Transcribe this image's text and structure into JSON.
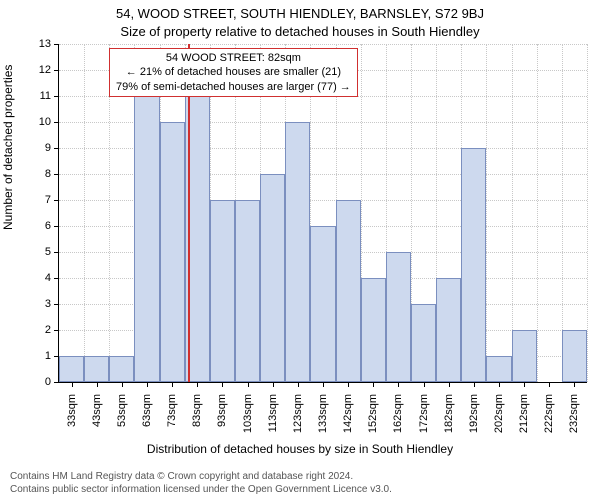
{
  "header": {
    "address": "54, WOOD STREET, SOUTH HIENDLEY, BARNSLEY, S72 9BJ",
    "subtitle": "Size of property relative to detached houses in South Hiendley"
  },
  "axes": {
    "ylabel": "Number of detached properties",
    "xlabel": "Distribution of detached houses by size in South Hiendley",
    "ymin": 0,
    "ymax": 13,
    "yticks": [
      0,
      1,
      2,
      3,
      4,
      5,
      6,
      7,
      8,
      9,
      10,
      11,
      12,
      13
    ],
    "xticks": [
      "33sqm",
      "43sqm",
      "53sqm",
      "63sqm",
      "73sqm",
      "83sqm",
      "93sqm",
      "103sqm",
      "113sqm",
      "123sqm",
      "133sqm",
      "142sqm",
      "152sqm",
      "162sqm",
      "172sqm",
      "182sqm",
      "192sqm",
      "202sqm",
      "212sqm",
      "222sqm",
      "232sqm"
    ]
  },
  "chart": {
    "type": "bar",
    "bar_fill": "#cdd9ee",
    "bar_border": "#7b8fbf",
    "grid_color": "#c8c8c8",
    "background": "#ffffff",
    "n_slots": 21,
    "values": [
      1,
      1,
      1,
      11,
      10,
      12,
      7,
      7,
      8,
      10,
      6,
      7,
      4,
      5,
      3,
      4,
      9,
      1,
      2,
      0,
      2
    ],
    "marker": {
      "position_index": 5.15,
      "color": "#d03030"
    }
  },
  "annotation": {
    "line1": "54 WOOD STREET: 82sqm",
    "line2": "← 21% of detached houses are smaller (21)",
    "line3": "79% of semi-detached houses are larger (77) →",
    "border_color": "#d03030"
  },
  "footer": {
    "line1": "Contains HM Land Registry data © Crown copyright and database right 2024.",
    "line2": "Contains public sector information licensed under the Open Government Licence v3.0."
  }
}
